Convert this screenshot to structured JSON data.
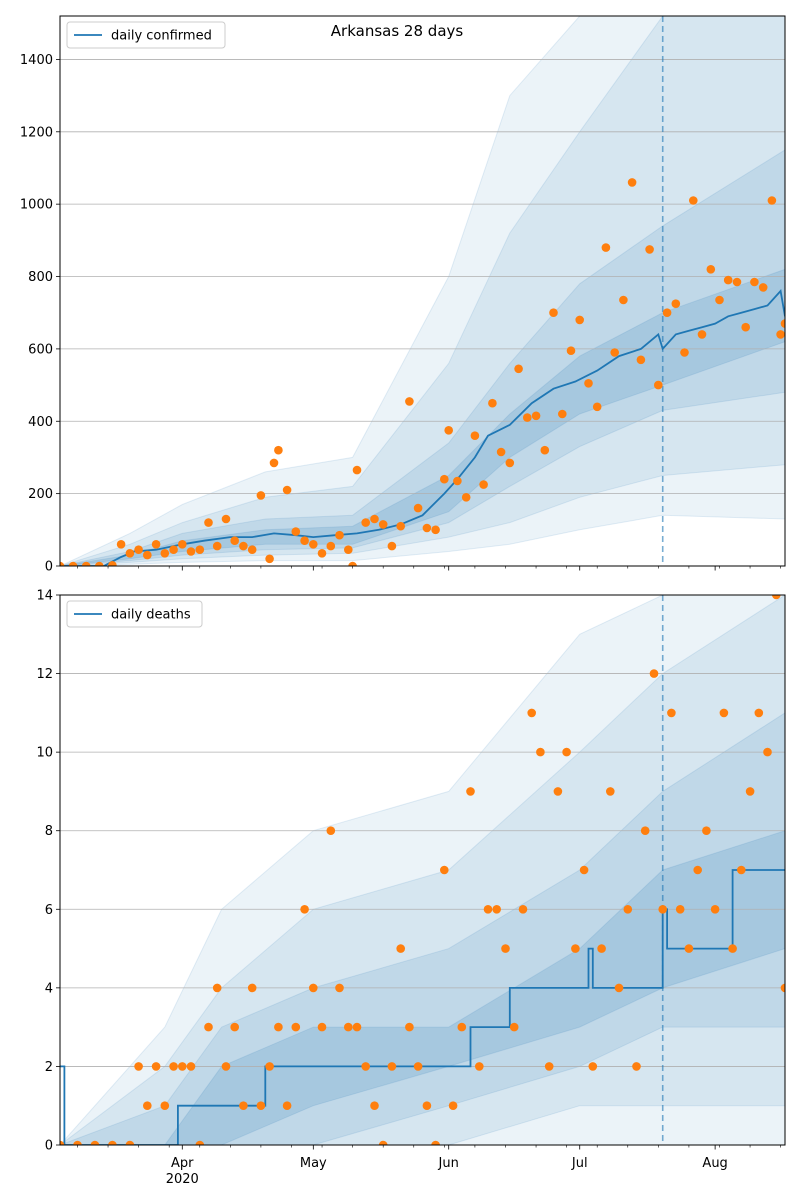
{
  "figure": {
    "title": "Arkansas 28 days",
    "colors": {
      "model": "#1f77b4",
      "observed": "#ff7f0e",
      "band": "#1f77b4",
      "grid": "#b0b0b0"
    }
  },
  "chart_data": [
    {
      "type": "line",
      "title": "Arkansas 28 days",
      "xlabel": "",
      "ylabel": "",
      "ylim": [
        0,
        1520
      ],
      "xlim": [
        "2020-03-04",
        "2020-08-17"
      ],
      "grid": "horizontal",
      "legend": "top-left",
      "forecast_start": "2020-07-20",
      "yticks": [
        0,
        200,
        400,
        600,
        800,
        1000,
        1200,
        1400
      ],
      "xticks": [
        {
          "date": "2020-04-01",
          "label": "Apr",
          "sub": "2020"
        },
        {
          "date": "2020-05-01",
          "label": "May",
          "sub": ""
        },
        {
          "date": "2020-06-01",
          "label": "Jun",
          "sub": ""
        },
        {
          "date": "2020-07-01",
          "label": "Jul",
          "sub": ""
        },
        {
          "date": "2020-08-01",
          "label": "Aug",
          "sub": ""
        }
      ],
      "series": [
        {
          "name": "daily confirmed",
          "kind": "median",
          "x": [
            "2020-03-04",
            "2020-03-14",
            "2020-03-18",
            "2020-03-21",
            "2020-03-26",
            "2020-04-01",
            "2020-04-06",
            "2020-04-12",
            "2020-04-17",
            "2020-04-22",
            "2020-04-27",
            "2020-05-01",
            "2020-05-06",
            "2020-05-11",
            "2020-05-16",
            "2020-05-21",
            "2020-05-26",
            "2020-05-31",
            "2020-06-03",
            "2020-06-07",
            "2020-06-10",
            "2020-06-15",
            "2020-06-20",
            "2020-06-25",
            "2020-06-30",
            "2020-07-05",
            "2020-07-10",
            "2020-07-15",
            "2020-07-19",
            "2020-07-20",
            "2020-07-23",
            "2020-07-26",
            "2020-07-29",
            "2020-08-01",
            "2020-08-04",
            "2020-08-07",
            "2020-08-10",
            "2020-08-13",
            "2020-08-16",
            "2020-08-17"
          ],
          "y": [
            0,
            0,
            25,
            40,
            45,
            60,
            70,
            80,
            80,
            90,
            85,
            80,
            85,
            90,
            100,
            115,
            140,
            200,
            240,
            300,
            360,
            390,
            450,
            490,
            510,
            540,
            580,
            600,
            640,
            600,
            640,
            650,
            660,
            670,
            690,
            700,
            710,
            720,
            760,
            690
          ]
        },
        {
          "name": "observed daily confirmed",
          "kind": "points",
          "x": [
            "2020-03-04",
            "2020-03-07",
            "2020-03-10",
            "2020-03-13",
            "2020-03-16",
            "2020-03-18",
            "2020-03-20",
            "2020-03-22",
            "2020-03-24",
            "2020-03-26",
            "2020-03-28",
            "2020-03-30",
            "2020-04-01",
            "2020-04-03",
            "2020-04-05",
            "2020-04-07",
            "2020-04-09",
            "2020-04-11",
            "2020-04-13",
            "2020-04-15",
            "2020-04-17",
            "2020-04-19",
            "2020-04-21",
            "2020-04-22",
            "2020-04-23",
            "2020-04-25",
            "2020-04-27",
            "2020-04-29",
            "2020-05-01",
            "2020-05-03",
            "2020-05-05",
            "2020-05-07",
            "2020-05-09",
            "2020-05-10",
            "2020-05-11",
            "2020-05-13",
            "2020-05-15",
            "2020-05-17",
            "2020-05-19",
            "2020-05-21",
            "2020-05-23",
            "2020-05-25",
            "2020-05-27",
            "2020-05-29",
            "2020-05-31",
            "2020-06-01",
            "2020-06-03",
            "2020-06-05",
            "2020-06-07",
            "2020-06-09",
            "2020-06-11",
            "2020-06-13",
            "2020-06-15",
            "2020-06-17",
            "2020-06-19",
            "2020-06-21",
            "2020-06-23",
            "2020-06-25",
            "2020-06-27",
            "2020-06-29",
            "2020-07-01",
            "2020-07-03",
            "2020-07-05",
            "2020-07-07",
            "2020-07-09",
            "2020-07-11",
            "2020-07-13",
            "2020-07-15",
            "2020-07-17",
            "2020-07-19",
            "2020-07-21",
            "2020-07-23",
            "2020-07-25",
            "2020-07-27",
            "2020-07-29",
            "2020-07-31",
            "2020-08-02",
            "2020-08-04",
            "2020-08-06",
            "2020-08-08",
            "2020-08-10",
            "2020-08-12",
            "2020-08-14",
            "2020-08-16",
            "2020-08-17"
          ],
          "y": [
            0,
            0,
            0,
            0,
            2,
            60,
            35,
            45,
            30,
            60,
            35,
            45,
            60,
            40,
            45,
            120,
            55,
            130,
            70,
            55,
            45,
            195,
            20,
            285,
            320,
            210,
            95,
            70,
            60,
            35,
            55,
            85,
            45,
            0,
            265,
            120,
            130,
            115,
            55,
            110,
            455,
            160,
            105,
            100,
            240,
            375,
            235,
            190,
            360,
            225,
            450,
            315,
            285,
            545,
            410,
            415,
            320,
            700,
            420,
            595,
            680,
            505,
            440,
            880,
            590,
            735,
            1060,
            570,
            875,
            500,
            700,
            725,
            590,
            1010,
            640,
            820,
            735,
            790,
            785,
            660,
            785,
            770,
            1010,
            640,
            670
          ]
        }
      ],
      "bands": [
        {
          "name": "inner",
          "x": [
            "2020-03-04",
            "2020-03-20",
            "2020-04-01",
            "2020-04-20",
            "2020-05-10",
            "2020-06-01",
            "2020-06-15",
            "2020-07-01",
            "2020-07-20",
            "2020-08-17"
          ],
          "lo": [
            0,
            20,
            40,
            60,
            60,
            150,
            300,
            420,
            500,
            620
          ],
          "hi": [
            0,
            30,
            70,
            100,
            110,
            250,
            420,
            580,
            700,
            820
          ]
        },
        {
          "name": "middle",
          "x": [
            "2020-03-04",
            "2020-03-20",
            "2020-04-01",
            "2020-04-20",
            "2020-05-10",
            "2020-06-01",
            "2020-06-15",
            "2020-07-01",
            "2020-07-20",
            "2020-08-17"
          ],
          "lo": [
            0,
            15,
            30,
            45,
            50,
            120,
            220,
            330,
            430,
            480
          ],
          "hi": [
            0,
            40,
            90,
            130,
            140,
            340,
            560,
            780,
            940,
            1150
          ]
        },
        {
          "name": "outer",
          "x": [
            "2020-03-04",
            "2020-03-20",
            "2020-04-01",
            "2020-04-20",
            "2020-05-10",
            "2020-06-01",
            "2020-06-15",
            "2020-07-01",
            "2020-07-20",
            "2020-08-17"
          ],
          "lo": [
            0,
            10,
            20,
            30,
            35,
            80,
            120,
            190,
            250,
            280
          ],
          "hi": [
            0,
            60,
            120,
            190,
            220,
            560,
            920,
            1200,
            1520,
            1520
          ]
        },
        {
          "name": "extreme",
          "x": [
            "2020-03-04",
            "2020-03-20",
            "2020-04-01",
            "2020-04-20",
            "2020-05-10",
            "2020-06-01",
            "2020-06-15",
            "2020-07-01",
            "2020-07-20",
            "2020-08-17"
          ],
          "lo": [
            0,
            5,
            10,
            15,
            15,
            40,
            60,
            100,
            140,
            130
          ],
          "hi": [
            0,
            90,
            170,
            260,
            300,
            800,
            1300,
            1520,
            1520,
            1520
          ]
        }
      ]
    },
    {
      "type": "line",
      "title": "",
      "xlabel": "",
      "ylabel": "",
      "ylim": [
        0,
        14
      ],
      "xlim": [
        "2020-03-04",
        "2020-08-17"
      ],
      "grid": "horizontal",
      "legend": "top-left",
      "forecast_start": "2020-07-20",
      "yticks": [
        0,
        2,
        4,
        6,
        8,
        10,
        12,
        14
      ],
      "xticks": [
        {
          "date": "2020-04-01",
          "label": "Apr",
          "sub": "2020"
        },
        {
          "date": "2020-05-01",
          "label": "May",
          "sub": ""
        },
        {
          "date": "2020-06-01",
          "label": "Jun",
          "sub": ""
        },
        {
          "date": "2020-07-01",
          "label": "Jul",
          "sub": ""
        },
        {
          "date": "2020-08-01",
          "label": "Aug",
          "sub": ""
        }
      ],
      "series": [
        {
          "name": "daily deaths",
          "kind": "median",
          "step": true,
          "x": [
            "2020-03-04",
            "2020-03-05",
            "2020-03-31",
            "2020-04-20",
            "2020-06-06",
            "2020-06-15",
            "2020-07-03",
            "2020-07-04",
            "2020-07-20",
            "2020-07-21",
            "2020-08-05",
            "2020-08-17"
          ],
          "y": [
            2,
            0,
            1,
            2,
            3,
            4,
            5,
            4,
            6,
            5,
            7,
            7
          ]
        },
        {
          "name": "observed daily deaths",
          "kind": "points",
          "x": [
            "2020-03-04",
            "2020-03-08",
            "2020-03-12",
            "2020-03-16",
            "2020-03-20",
            "2020-03-22",
            "2020-03-24",
            "2020-03-26",
            "2020-03-28",
            "2020-03-30",
            "2020-04-01",
            "2020-04-03",
            "2020-04-05",
            "2020-04-07",
            "2020-04-09",
            "2020-04-11",
            "2020-04-13",
            "2020-04-15",
            "2020-04-17",
            "2020-04-19",
            "2020-04-21",
            "2020-04-23",
            "2020-04-25",
            "2020-04-27",
            "2020-04-29",
            "2020-05-01",
            "2020-05-03",
            "2020-05-05",
            "2020-05-07",
            "2020-05-09",
            "2020-05-11",
            "2020-05-13",
            "2020-05-15",
            "2020-05-17",
            "2020-05-19",
            "2020-05-21",
            "2020-05-23",
            "2020-05-25",
            "2020-05-27",
            "2020-05-29",
            "2020-05-31",
            "2020-06-02",
            "2020-06-04",
            "2020-06-06",
            "2020-06-08",
            "2020-06-10",
            "2020-06-12",
            "2020-06-14",
            "2020-06-16",
            "2020-06-18",
            "2020-06-20",
            "2020-06-22",
            "2020-06-24",
            "2020-06-26",
            "2020-06-28",
            "2020-06-30",
            "2020-07-02",
            "2020-07-04",
            "2020-07-06",
            "2020-07-08",
            "2020-07-10",
            "2020-07-12",
            "2020-07-14",
            "2020-07-16",
            "2020-07-18",
            "2020-07-20",
            "2020-07-22",
            "2020-07-24",
            "2020-07-26",
            "2020-07-28",
            "2020-07-30",
            "2020-08-01",
            "2020-08-03",
            "2020-08-05",
            "2020-08-07",
            "2020-08-09",
            "2020-08-11",
            "2020-08-13",
            "2020-08-15",
            "2020-08-17"
          ],
          "y": [
            0,
            0,
            0,
            0,
            0,
            2,
            1,
            2,
            1,
            2,
            2,
            2,
            0,
            3,
            4,
            2,
            3,
            1,
            4,
            1,
            2,
            3,
            1,
            3,
            6,
            4,
            3,
            8,
            4,
            3,
            3,
            2,
            1,
            0,
            2,
            5,
            3,
            2,
            1,
            0,
            7,
            1,
            3,
            9,
            2,
            6,
            6,
            5,
            3,
            6,
            11,
            10,
            2,
            9,
            10,
            5,
            7,
            2,
            5,
            9,
            4,
            6,
            2,
            8,
            12,
            6,
            11,
            6,
            5,
            7,
            8,
            6,
            11,
            5,
            7,
            9,
            11,
            10,
            14,
            4
          ]
        }
      ],
      "bands": [
        {
          "name": "inner",
          "x": [
            "2020-03-04",
            "2020-03-28",
            "2020-04-10",
            "2020-05-01",
            "2020-06-01",
            "2020-07-01",
            "2020-07-20",
            "2020-08-17"
          ],
          "lo": [
            0,
            0,
            0,
            1,
            2,
            3,
            4,
            5
          ],
          "hi": [
            0,
            0,
            2,
            3,
            3,
            5,
            7,
            8
          ]
        },
        {
          "name": "middle",
          "x": [
            "2020-03-04",
            "2020-03-28",
            "2020-04-10",
            "2020-05-01",
            "2020-06-01",
            "2020-07-01",
            "2020-07-20",
            "2020-08-17"
          ],
          "lo": [
            0,
            0,
            0,
            0,
            1,
            2,
            3,
            3
          ],
          "hi": [
            0,
            1,
            3,
            4,
            5,
            7,
            9,
            11
          ]
        },
        {
          "name": "outer",
          "x": [
            "2020-03-04",
            "2020-03-28",
            "2020-04-10",
            "2020-05-01",
            "2020-06-01",
            "2020-07-01",
            "2020-07-20",
            "2020-08-17"
          ],
          "lo": [
            0,
            0,
            0,
            0,
            0,
            1,
            1,
            1
          ],
          "hi": [
            0,
            2,
            4,
            6,
            7,
            10,
            12,
            14
          ]
        },
        {
          "name": "extreme",
          "x": [
            "2020-03-04",
            "2020-03-28",
            "2020-04-10",
            "2020-05-01",
            "2020-06-01",
            "2020-07-01",
            "2020-07-20",
            "2020-08-17"
          ],
          "lo": [
            0,
            0,
            0,
            0,
            0,
            0,
            0,
            0
          ],
          "hi": [
            0,
            3,
            6,
            8,
            9,
            13,
            14,
            14
          ]
        }
      ]
    }
  ]
}
